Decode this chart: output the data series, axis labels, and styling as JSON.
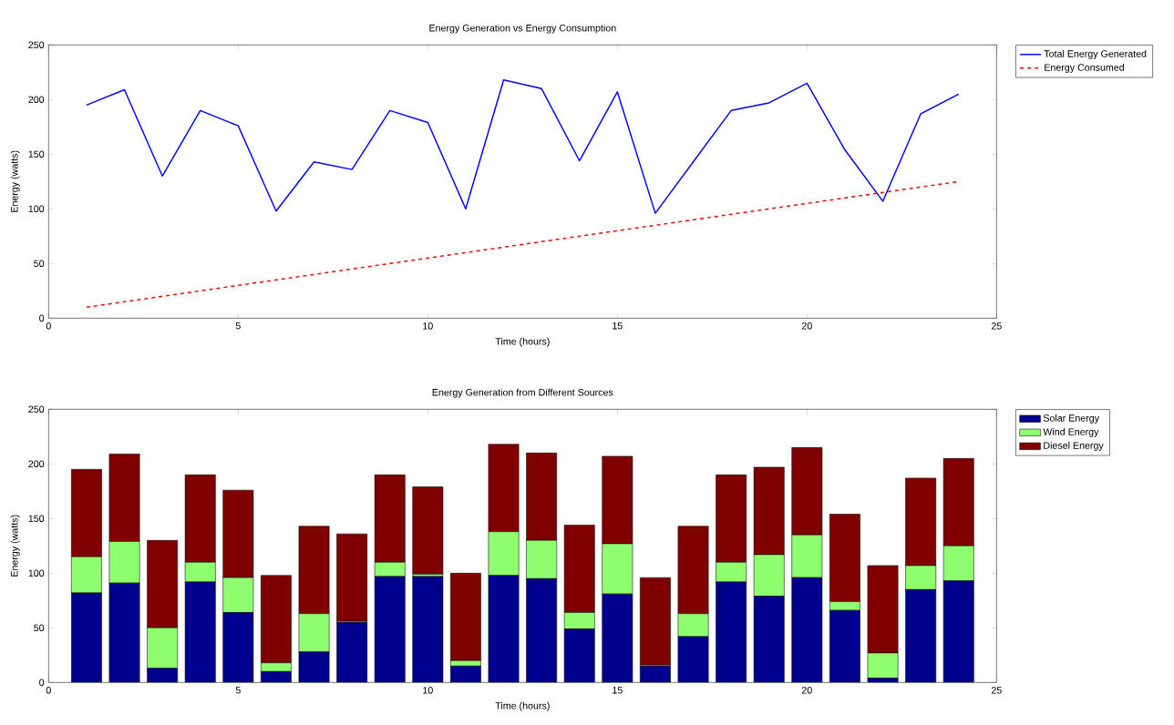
{
  "chart_data": [
    {
      "type": "line",
      "title": "Energy Generation vs Energy Consumption",
      "xlabel": "Time (hours)",
      "ylabel": "Energy (watts)",
      "x": [
        1,
        2,
        3,
        4,
        5,
        6,
        7,
        8,
        9,
        10,
        11,
        12,
        13,
        14,
        15,
        16,
        17,
        18,
        19,
        20,
        21,
        22,
        23,
        24
      ],
      "series": [
        {
          "name": "Total Energy Generated",
          "color": "#0000ff",
          "line_style": "solid",
          "values": [
            195,
            209,
            130,
            190,
            176,
            98,
            143,
            136,
            190,
            179,
            100,
            218,
            210,
            144,
            207,
            96,
            143,
            190,
            197,
            215,
            154,
            107,
            187,
            205
          ]
        },
        {
          "name": "Energy Consumed",
          "color": "#ff0000",
          "line_style": "dashed",
          "values": [
            10,
            15,
            20,
            25,
            30,
            35,
            40,
            45,
            50,
            55,
            60,
            65,
            70,
            75,
            80,
            85,
            90,
            95,
            100,
            105,
            110,
            115,
            120,
            125
          ]
        }
      ],
      "xlim": [
        0,
        25
      ],
      "xticks": [
        0,
        5,
        10,
        15,
        20,
        25
      ],
      "ylim": [
        0,
        250
      ],
      "yticks": [
        0,
        50,
        100,
        150,
        200,
        250
      ],
      "grid": false,
      "legend": "right"
    },
    {
      "type": "bar",
      "stacked": true,
      "title": "Energy Generation from Different Sources",
      "xlabel": "Time (hours)",
      "ylabel": "Energy (watts)",
      "x": [
        1,
        2,
        3,
        4,
        5,
        6,
        7,
        8,
        9,
        10,
        11,
        12,
        13,
        14,
        15,
        16,
        17,
        18,
        19,
        20,
        21,
        22,
        23,
        24
      ],
      "series": [
        {
          "name": "Solar Energy",
          "color": "#00008f",
          "values": [
            82,
            91,
            13,
            92,
            64,
            10,
            28,
            55,
            97,
            97,
            15,
            98,
            95,
            49,
            81,
            15,
            42,
            92,
            79,
            96,
            66,
            4,
            85,
            93
          ]
        },
        {
          "name": "Wind Energy",
          "color": "#8fff6f",
          "values": [
            33,
            38,
            37,
            18,
            32,
            8,
            35,
            1,
            13,
            2,
            5,
            40,
            35,
            15,
            46,
            1,
            21,
            18,
            38,
            39,
            8,
            23,
            22,
            32
          ]
        },
        {
          "name": "Diesel Energy",
          "color": "#800000",
          "values": [
            80,
            80,
            80,
            80,
            80,
            80,
            80,
            80,
            80,
            80,
            80,
            80,
            80,
            80,
            80,
            80,
            80,
            80,
            80,
            80,
            80,
            80,
            80,
            80
          ]
        }
      ],
      "xlim": [
        0,
        25
      ],
      "xticks": [
        0,
        5,
        10,
        15,
        20,
        25
      ],
      "ylim": [
        0,
        250
      ],
      "yticks": [
        0,
        50,
        100,
        150,
        200,
        250
      ],
      "grid": false,
      "legend": "right"
    }
  ]
}
